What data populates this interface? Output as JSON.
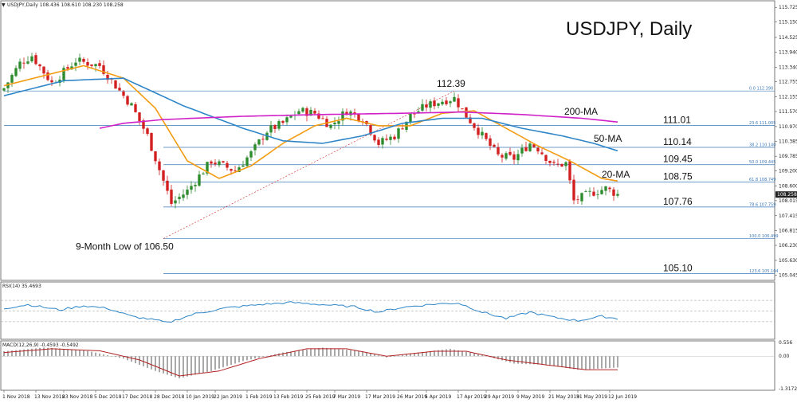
{
  "header": {
    "symbol_info": "USDJPY,Daily  108.436 108.610 108.230 108.258",
    "chart_title": "USDJPY, Daily"
  },
  "colors": {
    "bull": "#2e8b2e",
    "bear": "#d22020",
    "ma20": "#f39c12",
    "ma50": "#2e86c8",
    "ma200": "#d020c8",
    "fib": "#3b78b8",
    "rsi": "#2e86c8",
    "macd_line": "#b22222",
    "macd_hist": "#a0a0a0"
  },
  "chart_data": [
    {
      "type": "candlestick",
      "title": "USDJPY, Daily",
      "ylim": [
        104.865,
        115.86
      ],
      "yticks": [
        "115.725",
        "115.150",
        "114.525",
        "113.940",
        "113.340",
        "112.755",
        "112.155",
        "111.570",
        "110.970",
        "110.385",
        "109.785",
        "109.200",
        "108.600",
        "108.015",
        "107.415",
        "106.815",
        "106.230",
        "105.630",
        "105.045"
      ],
      "current_price": "108.258",
      "x_labels": [
        "1 Nov 2018",
        "13 Nov 2018",
        "23 Nov 2018",
        "5 Dec 2018",
        "17 Dec 2018",
        "28 Dec 2018",
        "10 Jan 2019",
        "22 Jan 2019",
        "1 Feb 2019",
        "13 Feb 2019",
        "25 Feb 2019",
        "7 Mar 2019",
        "17 Mar 2019",
        "26 Mar 2019",
        "5 Apr 2019",
        "17 Apr 2019",
        "29 Apr 2019",
        "9 May 2019",
        "21 May 2019",
        "31 May 2019",
        "12 Jun 2019"
      ],
      "close_keypoints": [
        {
          "i": 0,
          "c": 112.5
        },
        {
          "i": 4,
          "c": 113.5
        },
        {
          "i": 7,
          "c": 113.8
        },
        {
          "i": 12,
          "c": 112.7
        },
        {
          "i": 18,
          "c": 113.6
        },
        {
          "i": 24,
          "c": 113.4
        },
        {
          "i": 28,
          "c": 112.6
        },
        {
          "i": 32,
          "c": 111.8
        },
        {
          "i": 36,
          "c": 110.6
        },
        {
          "i": 40,
          "c": 108.8
        },
        {
          "i": 42,
          "c": 107.9
        },
        {
          "i": 46,
          "c": 108.4
        },
        {
          "i": 52,
          "c": 109.6
        },
        {
          "i": 58,
          "c": 109.2
        },
        {
          "i": 62,
          "c": 109.9
        },
        {
          "i": 66,
          "c": 110.8
        },
        {
          "i": 70,
          "c": 111.1
        },
        {
          "i": 74,
          "c": 111.6
        },
        {
          "i": 78,
          "c": 111.5
        },
        {
          "i": 82,
          "c": 111.0
        },
        {
          "i": 86,
          "c": 111.6
        },
        {
          "i": 90,
          "c": 111.3
        },
        {
          "i": 94,
          "c": 110.3
        },
        {
          "i": 98,
          "c": 110.6
        },
        {
          "i": 102,
          "c": 111.4
        },
        {
          "i": 106,
          "c": 111.8
        },
        {
          "i": 110,
          "c": 112.0
        },
        {
          "i": 113,
          "c": 112.1
        },
        {
          "i": 116,
          "c": 111.4
        },
        {
          "i": 120,
          "c": 110.6
        },
        {
          "i": 124,
          "c": 109.8
        },
        {
          "i": 128,
          "c": 109.7
        },
        {
          "i": 132,
          "c": 110.3
        },
        {
          "i": 134,
          "c": 110.1
        },
        {
          "i": 138,
          "c": 109.4
        },
        {
          "i": 141,
          "c": 109.5
        },
        {
          "i": 143,
          "c": 108.0
        },
        {
          "i": 147,
          "c": 108.3
        },
        {
          "i": 151,
          "c": 108.5
        },
        {
          "i": 154,
          "c": 108.26
        }
      ],
      "moving_averages": [
        {
          "name": "20-MA",
          "keypoints": [
            {
              "i": 0,
              "v": 112.6
            },
            {
              "i": 10,
              "v": 113.0
            },
            {
              "i": 20,
              "v": 113.4
            },
            {
              "i": 30,
              "v": 112.9
            },
            {
              "i": 38,
              "v": 111.7
            },
            {
              "i": 46,
              "v": 109.6
            },
            {
              "i": 54,
              "v": 108.9
            },
            {
              "i": 62,
              "v": 109.4
            },
            {
              "i": 70,
              "v": 110.3
            },
            {
              "i": 78,
              "v": 111.0
            },
            {
              "i": 86,
              "v": 111.3
            },
            {
              "i": 94,
              "v": 111.0
            },
            {
              "i": 102,
              "v": 111.0
            },
            {
              "i": 110,
              "v": 111.5
            },
            {
              "i": 118,
              "v": 111.6
            },
            {
              "i": 126,
              "v": 110.9
            },
            {
              "i": 134,
              "v": 110.2
            },
            {
              "i": 142,
              "v": 109.6
            },
            {
              "i": 150,
              "v": 108.9
            },
            {
              "i": 154,
              "v": 108.8
            }
          ]
        },
        {
          "name": "50-MA",
          "keypoints": [
            {
              "i": 0,
              "v": 112.2
            },
            {
              "i": 15,
              "v": 112.8
            },
            {
              "i": 30,
              "v": 112.9
            },
            {
              "i": 45,
              "v": 111.8
            },
            {
              "i": 60,
              "v": 110.9
            },
            {
              "i": 70,
              "v": 110.4
            },
            {
              "i": 80,
              "v": 110.3
            },
            {
              "i": 90,
              "v": 110.6
            },
            {
              "i": 100,
              "v": 111.1
            },
            {
              "i": 110,
              "v": 111.3
            },
            {
              "i": 120,
              "v": 111.3
            },
            {
              "i": 130,
              "v": 110.9
            },
            {
              "i": 140,
              "v": 110.6
            },
            {
              "i": 148,
              "v": 110.3
            },
            {
              "i": 154,
              "v": 110.0
            }
          ]
        },
        {
          "name": "200-MA",
          "keypoints": [
            {
              "i": 24,
              "v": 110.9
            },
            {
              "i": 30,
              "v": 111.1
            },
            {
              "i": 40,
              "v": 111.25
            },
            {
              "i": 60,
              "v": 111.38
            },
            {
              "i": 80,
              "v": 111.45
            },
            {
              "i": 100,
              "v": 111.5
            },
            {
              "i": 115,
              "v": 111.55
            },
            {
              "i": 130,
              "v": 111.45
            },
            {
              "i": 145,
              "v": 111.3
            },
            {
              "i": 154,
              "v": 111.15
            }
          ]
        }
      ],
      "ma_labels": [
        "200-MA",
        "50-MA",
        "20-MA"
      ],
      "fib_levels": [
        {
          "pct": "0.0",
          "price": 112.39,
          "small": "0.0  112.390",
          "label": "",
          "start_i": 0
        },
        {
          "pct": "23.6",
          "price": 111.01,
          "small": "23.6  111.005",
          "label": "111.01",
          "start_i": 0
        },
        {
          "pct": "38.2",
          "price": 110.14,
          "small": "38.2  110.140",
          "label": "110.14",
          "start_i": 40
        },
        {
          "pct": "50.0",
          "price": 109.45,
          "small": "50.0  109.445",
          "label": "109.45",
          "start_i": 40
        },
        {
          "pct": "61.8",
          "price": 108.75,
          "small": "61.8  108.749",
          "label": "108.75",
          "start_i": 40
        },
        {
          "pct": "78.6",
          "price": 107.76,
          "small": "78.6  107.759",
          "label": "107.76",
          "start_i": 40
        },
        {
          "pct": "100.0",
          "price": 106.5,
          "small": "100.0  106.499",
          "label": "",
          "start_i": 40
        },
        {
          "pct": "123.6",
          "price": 105.1,
          "small": "123.6  105.104",
          "label": "105.10",
          "start_i": 40
        }
      ],
      "annotations": [
        {
          "text": "112.39",
          "i": 113,
          "price": 112.39
        },
        {
          "text": "9-Month Low of 106.50",
          "i": 40,
          "price": 106.5
        }
      ]
    },
    {
      "type": "line",
      "title": "RSI(14) 35.4693",
      "ylim": [
        0,
        100
      ],
      "levels": [
        70,
        50,
        30
      ],
      "keypoints": [
        {
          "i": 0,
          "v": 55
        },
        {
          "i": 6,
          "v": 62
        },
        {
          "i": 14,
          "v": 52
        },
        {
          "i": 20,
          "v": 60
        },
        {
          "i": 26,
          "v": 55
        },
        {
          "i": 32,
          "v": 40
        },
        {
          "i": 38,
          "v": 33
        },
        {
          "i": 41,
          "v": 28
        },
        {
          "i": 48,
          "v": 45
        },
        {
          "i": 56,
          "v": 56
        },
        {
          "i": 64,
          "v": 62
        },
        {
          "i": 72,
          "v": 66
        },
        {
          "i": 80,
          "v": 62
        },
        {
          "i": 88,
          "v": 58
        },
        {
          "i": 94,
          "v": 48
        },
        {
          "i": 100,
          "v": 57
        },
        {
          "i": 108,
          "v": 63
        },
        {
          "i": 114,
          "v": 65
        },
        {
          "i": 120,
          "v": 48
        },
        {
          "i": 126,
          "v": 36
        },
        {
          "i": 132,
          "v": 48
        },
        {
          "i": 138,
          "v": 38
        },
        {
          "i": 144,
          "v": 32
        },
        {
          "i": 150,
          "v": 40
        },
        {
          "i": 154,
          "v": 35.5
        }
      ]
    },
    {
      "type": "bar",
      "title": "MACD(12,26,9) -0.4593 -0.5492",
      "ylim": [
        -1.3172,
        0.556
      ],
      "ytick_labels": [
        "0.556",
        "0.00",
        "-1.3172"
      ],
      "hist_keypoints": [
        {
          "i": 0,
          "v": 0.2
        },
        {
          "i": 10,
          "v": 0.35
        },
        {
          "i": 20,
          "v": 0.25
        },
        {
          "i": 30,
          "v": -0.1
        },
        {
          "i": 38,
          "v": -0.6
        },
        {
          "i": 44,
          "v": -0.9
        },
        {
          "i": 52,
          "v": -0.6
        },
        {
          "i": 60,
          "v": -0.2
        },
        {
          "i": 70,
          "v": 0.15
        },
        {
          "i": 80,
          "v": 0.35
        },
        {
          "i": 90,
          "v": 0.2
        },
        {
          "i": 96,
          "v": -0.05
        },
        {
          "i": 104,
          "v": 0.15
        },
        {
          "i": 112,
          "v": 0.3
        },
        {
          "i": 120,
          "v": 0.05
        },
        {
          "i": 128,
          "v": -0.3
        },
        {
          "i": 136,
          "v": -0.35
        },
        {
          "i": 144,
          "v": -0.55
        },
        {
          "i": 150,
          "v": -0.5
        },
        {
          "i": 154,
          "v": -0.46
        }
      ],
      "signal_keypoints": [
        {
          "i": 0,
          "v": 0.15
        },
        {
          "i": 12,
          "v": 0.3
        },
        {
          "i": 24,
          "v": 0.22
        },
        {
          "i": 34,
          "v": -0.15
        },
        {
          "i": 44,
          "v": -0.8
        },
        {
          "i": 54,
          "v": -0.6
        },
        {
          "i": 64,
          "v": -0.1
        },
        {
          "i": 76,
          "v": 0.3
        },
        {
          "i": 86,
          "v": 0.3
        },
        {
          "i": 96,
          "v": 0.0
        },
        {
          "i": 108,
          "v": 0.2
        },
        {
          "i": 116,
          "v": 0.2
        },
        {
          "i": 126,
          "v": -0.15
        },
        {
          "i": 136,
          "v": -0.35
        },
        {
          "i": 146,
          "v": -0.55
        },
        {
          "i": 154,
          "v": -0.55
        }
      ]
    }
  ]
}
